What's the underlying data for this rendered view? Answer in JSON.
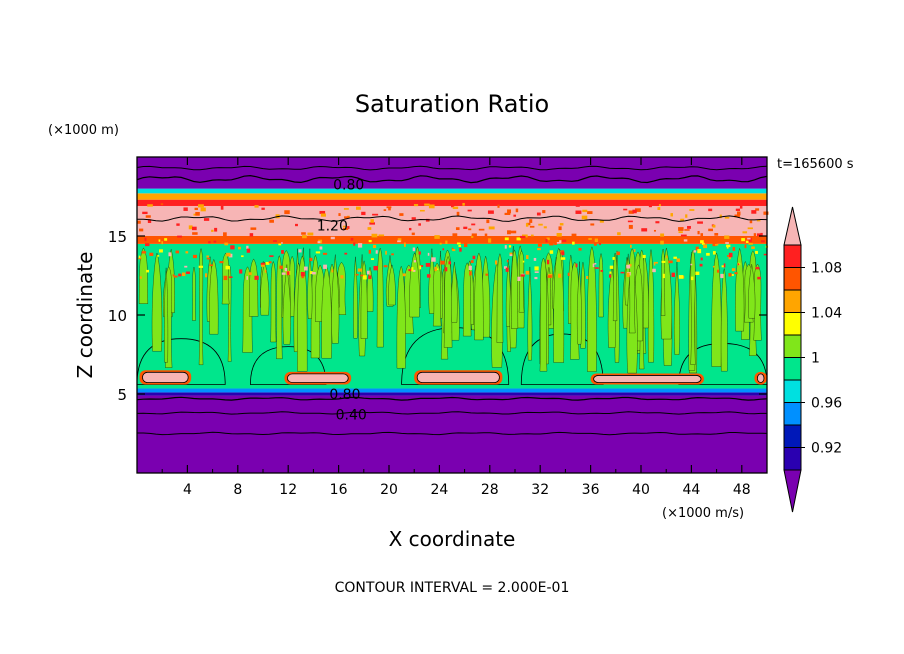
{
  "chart_data": {
    "type": "heatmap",
    "title": "Saturation Ratio",
    "xlabel": "X coordinate",
    "ylabel": "Z coordinate",
    "x_unit": "(×1000 m/s)",
    "y_unit": "(×1000 m)",
    "time_label": "t=165600 s",
    "footer": "CONTOUR INTERVAL = 2.000E-01",
    "xlim": [
      0,
      50
    ],
    "ylim": [
      0,
      20
    ],
    "x_ticks": [
      "4",
      "8",
      "12",
      "16",
      "20",
      "24",
      "28",
      "32",
      "36",
      "40",
      "44",
      "48"
    ],
    "y_ticks": [
      "5",
      "10",
      "15"
    ],
    "grid": false,
    "legend_position": "right",
    "colorbar": {
      "labels": [
        "0.92",
        "0.96",
        "1",
        "1.04",
        "1.08"
      ],
      "colors": [
        "#7a00b0",
        "#2a00b0",
        "#0018b8",
        "#0090ff",
        "#00e0e0",
        "#00e68c",
        "#80e61a",
        "#ffff00",
        "#ffa500",
        "#ff5500",
        "#ff2020",
        "#f7b5b5"
      ]
    },
    "contour_labels": [
      "0.80",
      "1.20",
      "0.80",
      "0.40"
    ],
    "bands": [
      {
        "z0": 0.0,
        "z1": 4.9,
        "value": 0.4,
        "color": "#7a00b0"
      },
      {
        "z0": 4.9,
        "z1": 5.1,
        "value": 0.9,
        "color": "#2a00b0"
      },
      {
        "z0": 5.1,
        "z1": 5.35,
        "value": 0.95,
        "color": "#0090ff"
      },
      {
        "z0": 5.35,
        "z1": 14.5,
        "value": 1.0,
        "color": "#00e68c"
      },
      {
        "z0": 14.5,
        "z1": 15.0,
        "value": 1.06,
        "color": "#ff5500"
      },
      {
        "z0": 15.0,
        "z1": 16.9,
        "value": 1.2,
        "color": "#f7b5b5"
      },
      {
        "z0": 16.9,
        "z1": 17.3,
        "value": 1.08,
        "color": "#ff2020"
      },
      {
        "z0": 17.3,
        "z1": 17.7,
        "value": 1.04,
        "color": "#ffa500"
      },
      {
        "z0": 17.7,
        "z1": 18.0,
        "value": 0.96,
        "color": "#00e0e0"
      },
      {
        "z0": 18.0,
        "z1": 20.0,
        "value": 0.7,
        "color": "#7a00b0"
      }
    ],
    "lower_pink_patches": [
      {
        "x0": 0.2,
        "x1": 4.3,
        "z0": 5.6,
        "z1": 6.5
      },
      {
        "x0": 11.7,
        "x1": 17.0,
        "z0": 5.6,
        "z1": 6.4
      },
      {
        "x0": 22.0,
        "x1": 29.0,
        "z0": 5.6,
        "z1": 6.5
      },
      {
        "x0": 36.0,
        "x1": 45.0,
        "z0": 5.6,
        "z1": 6.3
      },
      {
        "x0": 49.0,
        "x1": 50.0,
        "z0": 5.6,
        "z1": 6.4
      }
    ],
    "green_bulges": [
      {
        "x0": 0.0,
        "x1": 7.0,
        "z0": 5.6,
        "z1": 8.5
      },
      {
        "x0": 9.0,
        "x1": 15.0,
        "z0": 5.6,
        "z1": 8.0
      },
      {
        "x0": 21.0,
        "x1": 29.5,
        "z0": 5.6,
        "z1": 9.2
      },
      {
        "x0": 30.5,
        "x1": 37.0,
        "z0": 5.6,
        "z1": 8.8
      },
      {
        "x0": 43.0,
        "x1": 50.0,
        "z0": 5.6,
        "z1": 8.2
      }
    ]
  }
}
